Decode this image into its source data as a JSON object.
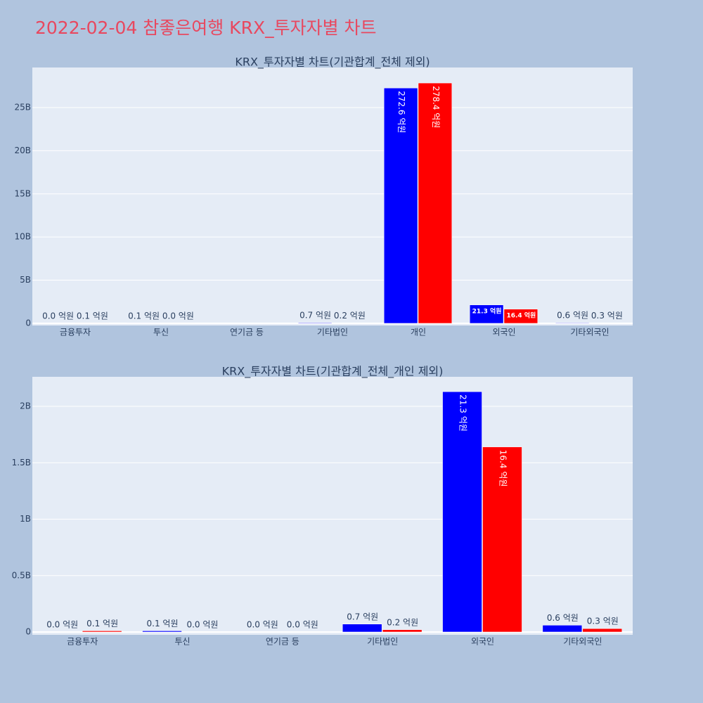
{
  "title": "2022-02-04 참좋은여행 KRX_투자자별 차트",
  "chart_data": [
    {
      "type": "bar",
      "title": "KRX_투자자별 차트(기관합계_전체 제외)",
      "categories": [
        "금융투자",
        "투신",
        "연기금 등",
        "기타법인",
        "개인",
        "외국인",
        "기타외국인"
      ],
      "series": [
        {
          "color": "#0000ff",
          "values": [
            0,
            10000000,
            null,
            70000000,
            27260000000,
            2130000000,
            60000000
          ],
          "value_labels": [
            "0.0 억원",
            "0.1 억원",
            null,
            "0.7 억원",
            "272.6 억원",
            "21.3 억원",
            "0.6 억원"
          ]
        },
        {
          "color": "#ff0000",
          "values": [
            10000000,
            0,
            null,
            20000000,
            27840000000,
            1640000000,
            30000000
          ],
          "value_labels": [
            "0.1 억원",
            "0.0 억원",
            null,
            "0.2 억원",
            "278.4 억원",
            "16.4 억원",
            "0.3 억원"
          ]
        }
      ],
      "ylim": [
        -250000000,
        29640000000
      ],
      "yticks": [
        0,
        {
          "value": 5000000000,
          "label": "5B"
        },
        {
          "value": 10000000000,
          "label": "10B"
        },
        {
          "value": 15000000000,
          "label": "15B"
        },
        {
          "value": 20000000000,
          "label": "20B"
        },
        {
          "value": 25000000000,
          "label": "25B"
        }
      ],
      "grid": true
    },
    {
      "type": "bar",
      "title": "KRX_투자자별 차트(기관합계_전체_개인 제외)",
      "categories": [
        "금융투자",
        "투신",
        "연기금 등",
        "기타법인",
        "외국인",
        "기타외국인"
      ],
      "series": [
        {
          "color": "#0000ff",
          "values": [
            0,
            10000000,
            0,
            70000000,
            2130000000,
            60000000
          ],
          "value_labels": [
            "0.0 억원",
            "0.1 억원",
            "0.0 억원",
            "0.7 억원",
            "21.3 억원",
            "0.6 억원"
          ]
        },
        {
          "color": "#ff0000",
          "values": [
            10000000,
            0,
            0,
            20000000,
            1640000000,
            30000000
          ],
          "value_labels": [
            "0.1 억원",
            "0.0 억원",
            "0.0 억원",
            "0.2 억원",
            "16.4 억원",
            "0.3 억원"
          ]
        }
      ],
      "ylim": [
        -25000000,
        2262000000
      ],
      "yticks": [
        0,
        {
          "value": 500000000,
          "label": "0.5B"
        },
        {
          "value": 1000000000,
          "label": "1B"
        },
        {
          "value": 1500000000,
          "label": "1.5B"
        },
        {
          "value": 2000000000,
          "label": "2B"
        }
      ],
      "grid": true
    }
  ]
}
